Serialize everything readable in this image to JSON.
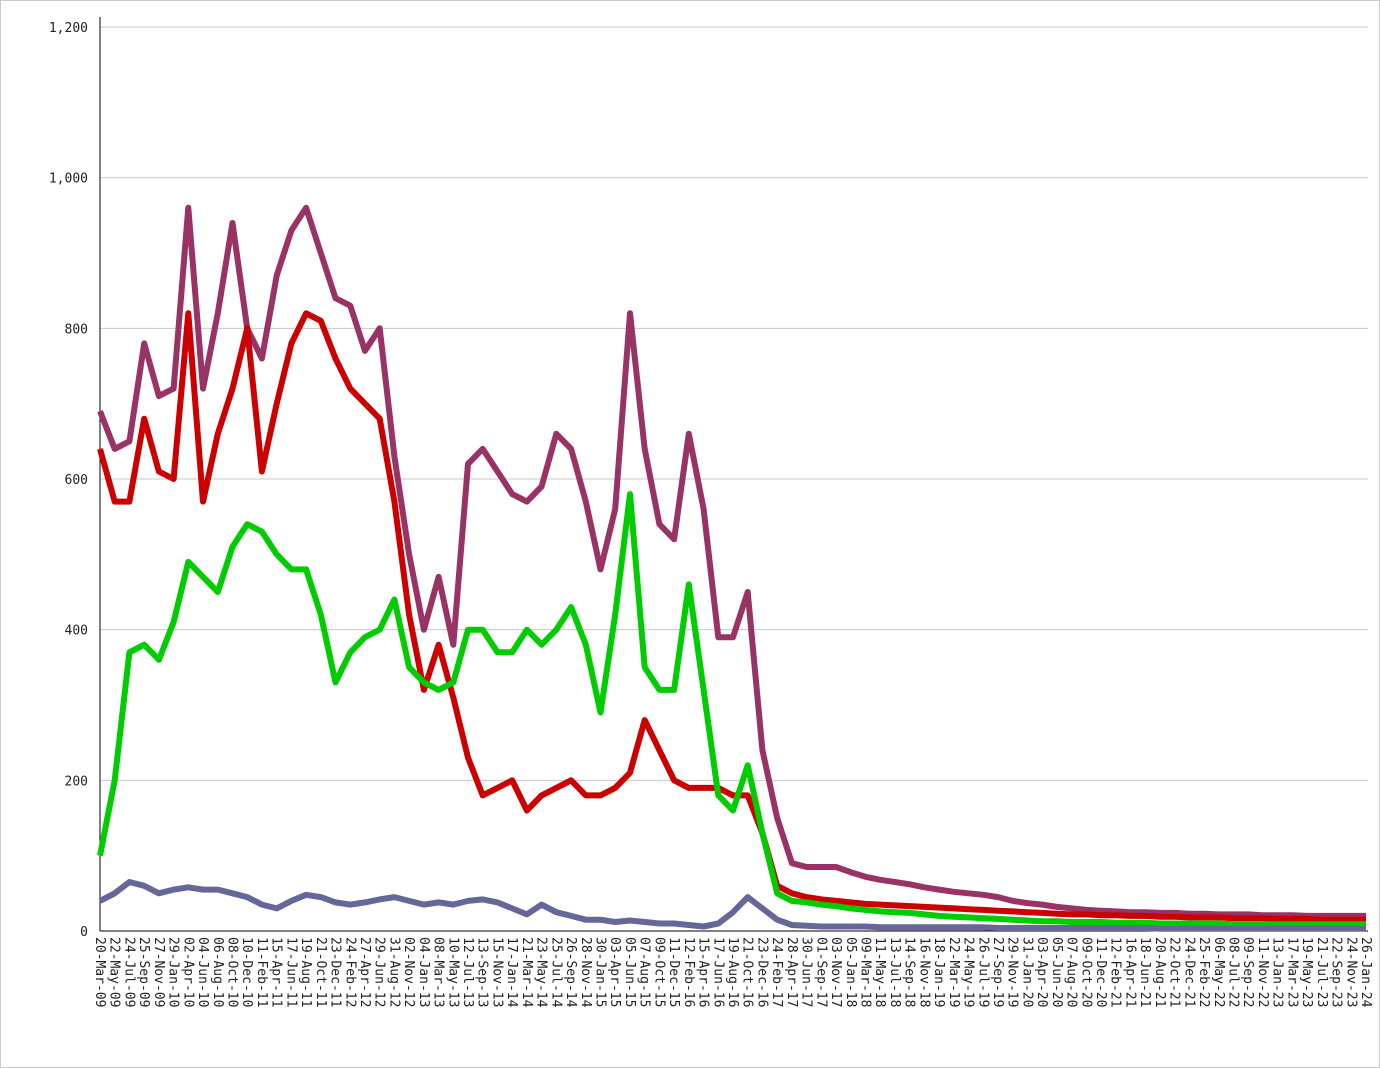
{
  "chart_data": {
    "type": "line",
    "categories": [
      "20-Mar-09",
      "22-May-09",
      "24-Jul-09",
      "25-Sep-09",
      "27-Nov-09",
      "29-Jan-10",
      "02-Apr-10",
      "04-Jun-10",
      "06-Aug-10",
      "08-Oct-10",
      "10-Dec-10",
      "11-Feb-11",
      "15-Apr-11",
      "17-Jun-11",
      "19-Aug-11",
      "21-Oct-11",
      "23-Dec-11",
      "24-Feb-12",
      "27-Apr-12",
      "29-Jun-12",
      "31-Aug-12",
      "02-Nov-12",
      "04-Jan-13",
      "08-Mar-13",
      "10-May-13",
      "12-Jul-13",
      "13-Sep-13",
      "15-Nov-13",
      "17-Jan-14",
      "21-Mar-14",
      "23-May-14",
      "25-Jul-14",
      "26-Sep-14",
      "28-Nov-14",
      "30-Jan-15",
      "03-Apr-15",
      "05-Jun-15",
      "07-Aug-15",
      "09-Oct-15",
      "11-Dec-15",
      "12-Feb-16",
      "15-Apr-16",
      "17-Jun-16",
      "19-Aug-16",
      "21-Oct-16",
      "23-Dec-16",
      "24-Feb-17",
      "28-Apr-17",
      "30-Jun-17",
      "01-Sep-17",
      "03-Nov-17",
      "05-Jan-18",
      "09-Mar-18",
      "11-May-18",
      "13-Jul-18",
      "14-Sep-18",
      "16-Nov-18",
      "18-Jan-19",
      "22-Mar-19",
      "24-May-19",
      "26-Jul-19",
      "27-Sep-19",
      "29-Nov-19",
      "31-Jan-20",
      "03-Apr-20",
      "05-Jun-20",
      "07-Aug-20",
      "09-Oct-20",
      "11-Dec-20",
      "12-Feb-21",
      "16-Apr-21",
      "18-Jun-21",
      "20-Aug-21",
      "22-Oct-21",
      "24-Dec-21",
      "25-Feb-22",
      "06-May-22",
      "08-Jul-22",
      "09-Sep-22",
      "11-Nov-22",
      "13-Jan-23",
      "17-Mar-23",
      "19-May-23",
      "21-Jul-23",
      "22-Sep-23",
      "24-Nov-23",
      "26-Jan-24"
    ],
    "series": [
      {
        "color": "#993366",
        "values": [
          690,
          640,
          650,
          780,
          710,
          720,
          960,
          720,
          820,
          940,
          800,
          760,
          870,
          930,
          960,
          900,
          840,
          830,
          770,
          800,
          630,
          500,
          400,
          470,
          380,
          620,
          640,
          610,
          580,
          570,
          590,
          660,
          640,
          570,
          480,
          560,
          820,
          640,
          540,
          520,
          660,
          560,
          390,
          390,
          450,
          240,
          150,
          90,
          85,
          85,
          85,
          78,
          72,
          68,
          65,
          62,
          58,
          55,
          52,
          50,
          48,
          45,
          40,
          37,
          35,
          32,
          30,
          28,
          27,
          26,
          25,
          25,
          24,
          24,
          23,
          23,
          22,
          22,
          22,
          21,
          21,
          21,
          20,
          20,
          20,
          20,
          20
        ]
      },
      {
        "color": "#cc0000",
        "values": [
          640,
          570,
          570,
          680,
          610,
          600,
          820,
          570,
          660,
          720,
          800,
          610,
          700,
          780,
          820,
          810,
          760,
          720,
          700,
          680,
          570,
          420,
          320,
          380,
          310,
          230,
          180,
          190,
          200,
          160,
          180,
          190,
          200,
          180,
          180,
          190,
          210,
          280,
          240,
          200,
          190,
          190,
          190,
          180,
          180,
          130,
          60,
          50,
          45,
          42,
          40,
          38,
          36,
          35,
          34,
          33,
          32,
          31,
          30,
          29,
          28,
          27,
          26,
          25,
          24,
          23,
          22,
          22,
          21,
          21,
          20,
          20,
          19,
          19,
          18,
          18,
          18,
          17,
          17,
          17,
          16,
          16,
          16,
          15,
          15,
          15,
          15
        ]
      },
      {
        "color": "#00cc00",
        "values": [
          100,
          200,
          370,
          380,
          360,
          410,
          490,
          470,
          450,
          510,
          540,
          530,
          500,
          480,
          480,
          420,
          330,
          370,
          390,
          400,
          440,
          350,
          330,
          320,
          330,
          400,
          400,
          370,
          370,
          400,
          380,
          400,
          430,
          380,
          290,
          420,
          580,
          350,
          320,
          320,
          460,
          320,
          180,
          160,
          220,
          130,
          50,
          40,
          38,
          35,
          33,
          30,
          28,
          26,
          25,
          24,
          22,
          20,
          19,
          18,
          17,
          16,
          15,
          14,
          13,
          13,
          12,
          12,
          12,
          11,
          11,
          11,
          10,
          10,
          10,
          10,
          10,
          9,
          9,
          9,
          9,
          9,
          9,
          9,
          9,
          9,
          9
        ]
      },
      {
        "color": "#666699",
        "values": [
          40,
          50,
          65,
          60,
          50,
          55,
          58,
          55,
          55,
          50,
          45,
          35,
          30,
          40,
          48,
          45,
          38,
          35,
          38,
          42,
          45,
          40,
          35,
          38,
          35,
          40,
          42,
          38,
          30,
          22,
          35,
          25,
          20,
          15,
          15,
          12,
          14,
          12,
          10,
          10,
          8,
          6,
          10,
          25,
          45,
          30,
          15,
          8,
          7,
          6,
          6,
          6,
          6,
          5,
          5,
          5,
          5,
          5,
          5,
          5,
          5,
          4,
          4,
          4,
          4,
          4,
          4,
          4,
          4,
          4,
          4,
          4,
          3,
          3,
          3,
          3,
          3,
          3,
          3,
          3,
          3,
          3,
          3,
          3,
          3,
          3,
          3
        ]
      }
    ],
    "ylim": [
      0,
      1200
    ],
    "yticks": [
      0,
      200,
      400,
      600,
      800,
      {
        "value": 1000,
        "label": "1,000"
      },
      {
        "value": 1200,
        "label": "1,200"
      }
    ],
    "grid": true
  }
}
